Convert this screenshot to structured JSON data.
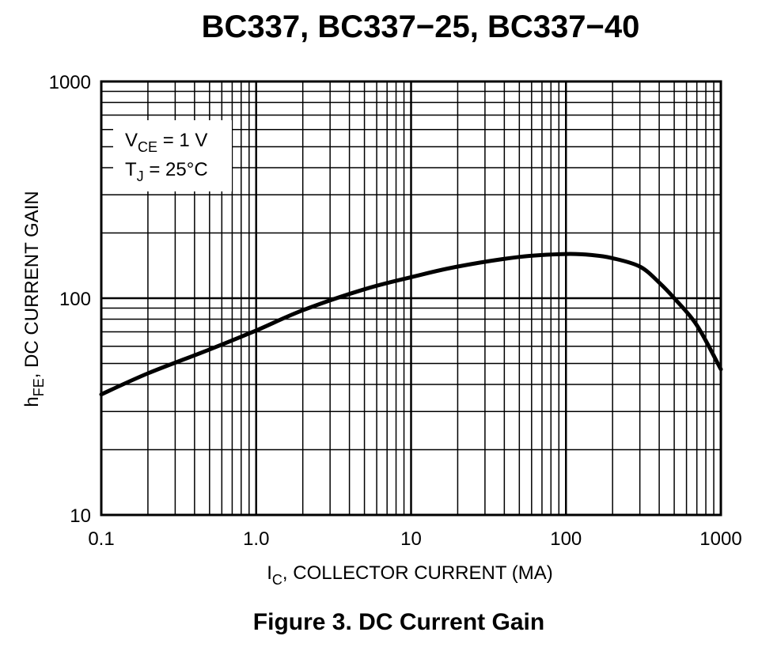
{
  "title": "BC337, BC337−25, BC337−40",
  "caption": "Figure 3. DC Current Gain",
  "conditions": {
    "vce": {
      "sym": "V",
      "sub": "CE",
      "rest": " = 1 V"
    },
    "tj": {
      "sym": "T",
      "sub": "J",
      "rest": " = 25°C"
    }
  },
  "chart_data": {
    "type": "line",
    "x_scale": "log",
    "y_scale": "log",
    "xlim": [
      0.1,
      1000
    ],
    "ylim": [
      10,
      1000
    ],
    "xlabel": {
      "sym": "I",
      "sub": "C",
      "rest": ", COLLECTOR CURRENT (MA)"
    },
    "ylabel": {
      "sym": "h",
      "sub": "FE",
      "rest": ", DC CURRENT GAIN"
    },
    "x_ticks": [
      {
        "value": 0.1,
        "label": "0.1"
      },
      {
        "value": 1,
        "label": "1.0"
      },
      {
        "value": 10,
        "label": "10"
      },
      {
        "value": 100,
        "label": "100"
      },
      {
        "value": 1000,
        "label": "1000"
      }
    ],
    "y_ticks": [
      {
        "value": 10,
        "label": "10"
      },
      {
        "value": 100,
        "label": "100"
      },
      {
        "value": 1000,
        "label": "1000"
      }
    ],
    "grid": true,
    "series": [
      {
        "color": "#000000",
        "x": [
          0.1,
          0.2,
          0.5,
          1.0,
          2.0,
          5.0,
          10,
          20,
          50,
          100,
          150,
          200,
          300,
          400,
          500,
          700,
          1000
        ],
        "y": [
          36,
          45,
          58,
          71,
          88,
          110,
          125,
          140,
          155,
          160,
          158,
          153,
          140,
          118,
          100,
          75,
          47
        ]
      }
    ]
  }
}
